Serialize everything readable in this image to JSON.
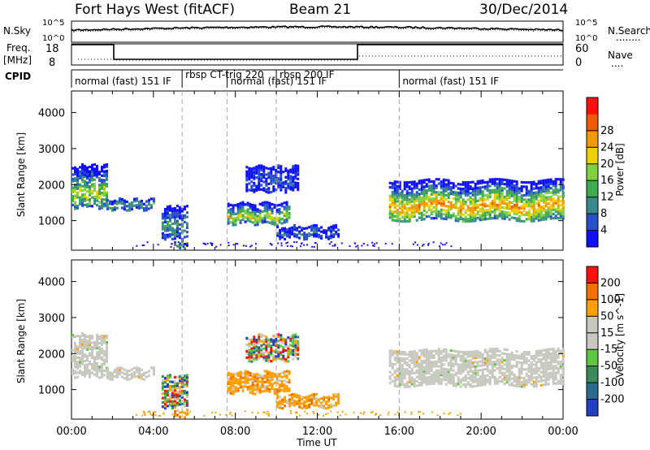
{
  "header": {
    "station": "Fort Hays West (fitACF)",
    "beam": "Beam 21",
    "date": "30/Dec/2014"
  },
  "strips": {
    "nsky_label": "N.Sky",
    "nsearch_label": "N.Search",
    "nsearch_legend": "........",
    "sky_ticks": [
      "10^5",
      "10^0"
    ],
    "freq_label_1": "Freq.",
    "freq_label_2": "[MHz]",
    "freq_ticks": [
      "18",
      "8"
    ],
    "nave_label": "Nave",
    "nave_legend": "....",
    "nave_ticks": [
      "60",
      "0"
    ],
    "cpid_label": "CPID",
    "cpid_segments": [
      {
        "label": "normal (fast) 151 IF",
        "start": 0.0,
        "end": 5.4
      },
      {
        "label": "rbsp CT-trig 220",
        "start": 5.4,
        "end": 7.6
      },
      {
        "label": "normal (fast) 151 IF",
        "start": 7.6,
        "end": 10.0
      },
      {
        "label": "rbsp 200 IF",
        "start": 10.0,
        "end": 16.0
      },
      {
        "label": "normal (fast) 151 IF",
        "start": 16.0,
        "end": 24.0
      }
    ]
  },
  "chart_data": [
    {
      "type": "heatmap",
      "panel": "power",
      "ylabel": "Slant Range [km]",
      "ylim": [
        180,
        4600
      ],
      "yticks": [
        1000,
        2000,
        3000,
        4000
      ],
      "colorbar_label": "Power [dB]",
      "colorbar_ticks": [
        "4",
        "8",
        "12",
        "16",
        "20",
        "24",
        "28"
      ],
      "colorbar_colors": [
        "#1010ff",
        "#2850c8",
        "#3a8a8c",
        "#40aa50",
        "#80d040",
        "#f0d000",
        "#f09a00",
        "#f05a00",
        "#ff1010"
      ],
      "regions": [
        {
          "t0": 0.0,
          "t1": 1.7,
          "r0": 1350,
          "r1": 2500,
          "level": 0.55
        },
        {
          "t0": 1.7,
          "t1": 4.0,
          "r0": 1300,
          "r1": 1600,
          "level": 0.35
        },
        {
          "t0": 4.4,
          "t1": 5.6,
          "r0": 500,
          "r1": 1400,
          "level": 0.35
        },
        {
          "t0": 5.0,
          "t1": 5.6,
          "r0": 250,
          "r1": 400,
          "level": 0.6
        },
        {
          "t0": 7.6,
          "t1": 10.6,
          "r0": 900,
          "r1": 1450,
          "level": 0.6
        },
        {
          "t0": 8.5,
          "t1": 11.0,
          "r0": 1800,
          "r1": 2500,
          "level": 0.15
        },
        {
          "t0": 10.0,
          "t1": 13.0,
          "r0": 500,
          "r1": 850,
          "level": 0.2
        },
        {
          "t0": 15.5,
          "t1": 24.0,
          "r0": 1000,
          "r1": 2100,
          "level": 0.75
        }
      ]
    },
    {
      "type": "heatmap",
      "panel": "velocity",
      "ylabel": "Slant Range [km]",
      "ylim": [
        180,
        4600
      ],
      "yticks": [
        1000,
        2000,
        3000,
        4000
      ],
      "colorbar_label": "Velocity [m s^-1]",
      "colorbar_ticks": [
        "200",
        "100",
        "50",
        "15",
        "-15",
        "-50",
        "-100",
        "-200"
      ],
      "colorbar_colors": [
        "#2040c0",
        "#2a6a8a",
        "#3a8a5a",
        "#60c840",
        "#c8c8c0",
        "#c8c8c0",
        "#ffa000",
        "#f07000",
        "#ff1010"
      ],
      "regions": [
        {
          "t0": 0.0,
          "t1": 1.7,
          "r0": 1350,
          "r1": 2500,
          "kind": "gray"
        },
        {
          "t0": 1.7,
          "t1": 4.0,
          "r0": 1300,
          "r1": 1600,
          "kind": "gray"
        },
        {
          "t0": 4.4,
          "t1": 5.6,
          "r0": 500,
          "r1": 1400,
          "kind": "mixed"
        },
        {
          "t0": 5.0,
          "t1": 5.6,
          "r0": 250,
          "r1": 400,
          "kind": "orange"
        },
        {
          "t0": 7.6,
          "t1": 10.6,
          "r0": 900,
          "r1": 1450,
          "kind": "orange"
        },
        {
          "t0": 8.5,
          "t1": 11.0,
          "r0": 1800,
          "r1": 2500,
          "kind": "mixed"
        },
        {
          "t0": 10.0,
          "t1": 13.0,
          "r0": 500,
          "r1": 850,
          "kind": "orange"
        },
        {
          "t0": 15.5,
          "t1": 24.0,
          "r0": 1100,
          "r1": 2100,
          "kind": "gray"
        }
      ]
    }
  ],
  "xaxis": {
    "label": "Time UT",
    "ticks": [
      "00:00",
      "04:00",
      "08:00",
      "12:00",
      "16:00",
      "20:00",
      "00:00"
    ],
    "tick_hours": [
      0,
      4,
      8,
      12,
      16,
      20,
      24
    ],
    "dashed_hours": [
      5.4,
      7.6,
      10.0,
      16.0
    ]
  }
}
